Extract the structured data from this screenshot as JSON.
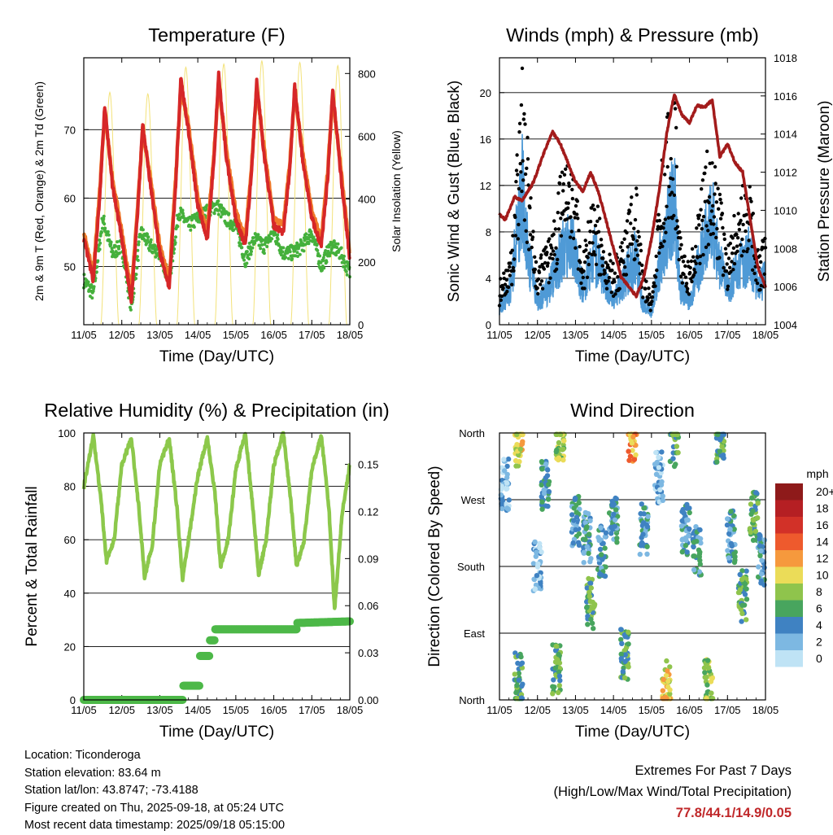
{
  "info": {
    "location": "Location: Ticonderoga",
    "elevation": "Station elevation: 83.64 m",
    "latlon": "Station lat/lon: 43.8747; -73.4188",
    "created": "Figure created on Thu, 2025-09-18, at 05:24 UTC",
    "recent": "Most recent data timestamp: 2025/09/18 05:15:00"
  },
  "extremes": {
    "title": "Extremes For Past 7 Days",
    "subtitle": "(High/Low/Max Wind/Total Precipitation)",
    "values": "77.8/44.1/14.9/0.05"
  },
  "colors": {
    "t2m": "#d62728",
    "t9m": "#f07a2a",
    "td": "#45b03c",
    "solar": "#f3e27a",
    "gust": "#000000",
    "wind": "#4f9ad6",
    "pressure": "#a31b1b",
    "rh": "#8cc84b",
    "rain": "#4db848"
  },
  "chart_data": [
    {
      "type": "line",
      "title": "Temperature (F)",
      "xlabel": "Time (Day/UTC)",
      "ylabel": "2m & 9m T (Red, Orange) & 2m Td (Green)",
      "y2label": "Solar Insolation (Yellow)",
      "xticks": [
        "11/05",
        "12/05",
        "13/05",
        "14/05",
        "15/05",
        "16/05",
        "17/05",
        "18/05"
      ],
      "yticks": [
        50,
        60,
        70
      ],
      "y2ticks": [
        0,
        200,
        400,
        600,
        800
      ],
      "ylim": [
        41.5,
        80.5
      ],
      "y2lim": [
        0,
        850
      ],
      "grid": true,
      "series": [
        {
          "name": "2m T",
          "x": [
            0.0,
            0.25,
            0.42,
            0.55,
            0.75,
            1.0,
            1.25,
            1.42,
            1.55,
            1.75,
            2.0,
            2.25,
            2.42,
            2.55,
            2.75,
            3.0,
            3.25,
            3.42,
            3.55,
            3.75,
            4.0,
            4.25,
            4.42,
            4.55,
            4.75,
            5.0,
            5.25,
            5.42,
            5.55,
            5.75,
            6.0,
            6.25,
            6.42,
            6.55,
            6.75,
            7.0
          ],
          "values": [
            54,
            48,
            60,
            73.5,
            62,
            54,
            45,
            58,
            71,
            62,
            52,
            47,
            62,
            77.5,
            70,
            59,
            54,
            65,
            78,
            66,
            57,
            53,
            64,
            77,
            66,
            56,
            55,
            64,
            76.5,
            66,
            57,
            53,
            63,
            76,
            64,
            51
          ]
        },
        {
          "name": "9m T",
          "x": [
            0.0,
            0.25,
            0.42,
            0.55,
            0.75,
            1.0,
            1.25,
            1.42,
            1.55,
            1.75,
            2.0,
            2.25,
            2.42,
            2.55,
            2.75,
            3.0,
            3.25,
            3.42,
            3.55,
            3.75,
            4.0,
            4.25,
            4.42,
            4.55,
            4.75,
            5.0,
            5.25,
            5.42,
            5.55,
            5.75,
            6.0,
            6.25,
            6.42,
            6.55,
            6.75,
            7.0
          ],
          "values": [
            55,
            49,
            61,
            72.5,
            63,
            55,
            46,
            59,
            70,
            63,
            53,
            48,
            63,
            76,
            71,
            60,
            55,
            66,
            77,
            67,
            58,
            54,
            65,
            76,
            67,
            57,
            56,
            65,
            75.5,
            67,
            58,
            54,
            64,
            75,
            65,
            52
          ]
        },
        {
          "name": "2m Td",
          "x": [
            0.0,
            0.25,
            0.5,
            0.75,
            1.0,
            1.25,
            1.5,
            1.75,
            2.0,
            2.25,
            2.5,
            2.75,
            3.0,
            3.25,
            3.5,
            3.75,
            4.0,
            4.25,
            4.5,
            4.75,
            5.0,
            5.25,
            5.5,
            5.75,
            6.0,
            6.25,
            6.5,
            6.75,
            7.0
          ],
          "values": [
            48,
            46,
            57,
            52,
            53,
            44,
            55,
            53,
            52,
            48,
            58,
            56,
            57,
            58,
            59,
            57,
            56,
            51,
            54,
            53,
            55,
            52,
            52,
            53,
            55,
            50,
            53,
            52,
            49
          ]
        },
        {
          "name": "Solar Insolation",
          "axis": "y2",
          "peaks": [
            740,
            735,
            820,
            830,
            840,
            835,
            825
          ]
        }
      ]
    },
    {
      "type": "line",
      "title": "Winds (mph) & Pressure (mb)",
      "xlabel": "Time (Day/UTC)",
      "ylabel": "Sonic Wind & Gust (Blue, Black)",
      "y2label": "Station Pressure (Maroon)",
      "xticks": [
        "11/05",
        "12/05",
        "13/05",
        "14/05",
        "15/05",
        "16/05",
        "17/05",
        "18/05"
      ],
      "yticks": [
        0,
        4,
        8,
        12,
        16,
        20
      ],
      "y2ticks": [
        1004,
        1006,
        1008,
        1010,
        1012,
        1014,
        1016,
        1018
      ],
      "ylim": [
        0,
        23
      ],
      "y2lim": [
        1004,
        1018
      ],
      "grid": true,
      "series": [
        {
          "name": "Gust",
          "x": [
            0.0,
            0.3,
            0.6,
            0.75,
            1.0,
            1.3,
            1.6,
            1.9,
            2.2,
            2.5,
            2.75,
            3.0,
            3.3,
            3.6,
            3.75,
            4.0,
            4.3,
            4.6,
            4.75,
            5.0,
            5.3,
            5.6,
            5.75,
            6.0,
            6.3,
            6.6,
            6.8,
            7.0
          ],
          "values": [
            3,
            5,
            17,
            12,
            4,
            6,
            10,
            12,
            5,
            9,
            6,
            4,
            7,
            10,
            4,
            2,
            12,
            17,
            6,
            4,
            9,
            14,
            10,
            5,
            9,
            10,
            5,
            6
          ]
        },
        {
          "name": "Wind",
          "x": [
            0.0,
            0.3,
            0.6,
            0.75,
            1.0,
            1.3,
            1.6,
            1.9,
            2.2,
            2.5,
            2.75,
            3.0,
            3.3,
            3.6,
            3.75,
            4.0,
            4.3,
            4.6,
            4.75,
            5.0,
            5.3,
            5.6,
            5.75,
            6.0,
            6.3,
            6.6,
            6.8,
            7.0
          ],
          "values": [
            1.5,
            3,
            12,
            6,
            2,
            3,
            6,
            7,
            3,
            6,
            4,
            2,
            4,
            6,
            2,
            1,
            7,
            11,
            3,
            2,
            6,
            9,
            6,
            3,
            5,
            6,
            3,
            4
          ]
        },
        {
          "name": "Station Pressure",
          "axis": "y2",
          "x": [
            0.0,
            0.15,
            0.4,
            0.6,
            0.9,
            1.2,
            1.4,
            1.6,
            1.8,
            2.0,
            2.2,
            2.4,
            2.6,
            2.8,
            3.0,
            3.2,
            3.4,
            3.6,
            3.8,
            4.0,
            4.2,
            4.4,
            4.6,
            4.8,
            5.0,
            5.2,
            5.4,
            5.6,
            5.8,
            6.0,
            6.2,
            6.4,
            6.6,
            6.8,
            7.0
          ],
          "values": [
            1009.8,
            1009.5,
            1010.7,
            1010.5,
            1011.5,
            1013.2,
            1014.1,
            1013.5,
            1012.5,
            1011.5,
            1011.0,
            1012.0,
            1011.0,
            1009.5,
            1008.0,
            1006.5,
            1006.0,
            1005.5,
            1006.5,
            1008.5,
            1011.0,
            1014.0,
            1016.1,
            1015.0,
            1014.6,
            1015.5,
            1015.4,
            1015.8,
            1012.8,
            1013.5,
            1012.5,
            1012.0,
            1009.5,
            1007.0,
            1006.0
          ]
        }
      ]
    },
    {
      "type": "line",
      "title": "Relative Humidity (%) & Precipitation (in)",
      "xlabel": "Time (Day/UTC)",
      "ylabel": "Percent & Total Rainfall",
      "xticks": [
        "11/05",
        "12/05",
        "13/05",
        "14/05",
        "15/05",
        "16/05",
        "17/05",
        "18/05"
      ],
      "yticks": [
        0,
        20,
        40,
        60,
        80,
        100
      ],
      "y2ticks": [
        "0.00",
        "0.03",
        "0.06",
        "0.09",
        "0.12",
        "0.15"
      ],
      "ylim": [
        0,
        100
      ],
      "y2lim": [
        0,
        0.17
      ],
      "grid": true,
      "series": [
        {
          "name": "Relative Humidity",
          "x": [
            0.0,
            0.25,
            0.45,
            0.6,
            0.8,
            1.0,
            1.25,
            1.45,
            1.6,
            1.8,
            2.0,
            2.25,
            2.45,
            2.6,
            2.8,
            3.0,
            3.25,
            3.45,
            3.6,
            3.8,
            4.0,
            4.25,
            4.45,
            4.6,
            4.8,
            5.0,
            5.25,
            5.45,
            5.6,
            5.8,
            6.0,
            6.25,
            6.45,
            6.6,
            6.8,
            7.0
          ],
          "values": [
            80,
            99,
            75,
            52,
            60,
            88,
            98,
            72,
            46,
            58,
            88,
            98,
            72,
            45,
            64,
            84,
            98,
            78,
            50,
            60,
            86,
            100,
            72,
            47,
            60,
            88,
            100,
            74,
            50,
            60,
            86,
            99,
            72,
            34,
            70,
            88
          ]
        },
        {
          "name": "Total Rainfall",
          "axis": "y2",
          "x": [
            0.0,
            2.6,
            2.6,
            3.05,
            3.05,
            3.3,
            3.3,
            3.45,
            3.45,
            5.6,
            5.6,
            7.0
          ],
          "values": [
            0.0,
            0.0,
            0.009,
            0.009,
            0.028,
            0.028,
            0.038,
            0.038,
            0.045,
            0.045,
            0.049,
            0.05
          ]
        }
      ]
    },
    {
      "type": "scatter",
      "title": "Wind Direction",
      "xlabel": "Time (Day/UTC)",
      "ylabel": "Direction (Colored By Speed)",
      "xticks": [
        "11/05",
        "12/05",
        "13/05",
        "14/05",
        "15/05",
        "16/05",
        "17/05",
        "18/05"
      ],
      "yticks": [
        "North",
        "East",
        "South",
        "West",
        "North"
      ],
      "ylim": [
        0,
        360
      ],
      "grid": true,
      "legend": {
        "title": "mph",
        "placement": "right",
        "labels": [
          "20+",
          "18",
          "16",
          "14",
          "12",
          "10",
          "8",
          "6",
          "4",
          "2",
          "0"
        ],
        "colors": [
          "#8e1a1a",
          "#b51f23",
          "#d23128",
          "#ee5a2d",
          "#f6993d",
          "#ebdc58",
          "#8fc44c",
          "#48a55e",
          "#3f82c2",
          "#7db8e2",
          "#bfe3f5"
        ]
      },
      "clusters": [
        {
          "x": 0.15,
          "dir": 290,
          "speed": 2
        },
        {
          "x": 0.5,
          "dir": 30,
          "speed": 6
        },
        {
          "x": 0.5,
          "dir": 350,
          "speed": 10
        },
        {
          "x": 1.0,
          "dir": 180,
          "speed": 2
        },
        {
          "x": 1.2,
          "dir": 290,
          "speed": 4
        },
        {
          "x": 1.5,
          "dir": 40,
          "speed": 6
        },
        {
          "x": 1.6,
          "dir": 355,
          "speed": 8
        },
        {
          "x": 2.0,
          "dir": 240,
          "speed": 4
        },
        {
          "x": 2.3,
          "dir": 220,
          "speed": 4
        },
        {
          "x": 2.4,
          "dir": 130,
          "speed": 6
        },
        {
          "x": 2.7,
          "dir": 200,
          "speed": 4
        },
        {
          "x": 3.0,
          "dir": 240,
          "speed": 4
        },
        {
          "x": 3.3,
          "dir": 60,
          "speed": 6
        },
        {
          "x": 3.5,
          "dir": 355,
          "speed": 12
        },
        {
          "x": 3.8,
          "dir": 230,
          "speed": 4
        },
        {
          "x": 4.2,
          "dir": 300,
          "speed": 2
        },
        {
          "x": 4.4,
          "dir": 20,
          "speed": 10
        },
        {
          "x": 4.6,
          "dir": 350,
          "speed": 6
        },
        {
          "x": 4.9,
          "dir": 230,
          "speed": 4
        },
        {
          "x": 5.2,
          "dir": 200,
          "speed": 4
        },
        {
          "x": 5.5,
          "dir": 20,
          "speed": 8
        },
        {
          "x": 5.8,
          "dir": 355,
          "speed": 6
        },
        {
          "x": 6.1,
          "dir": 220,
          "speed": 4
        },
        {
          "x": 6.4,
          "dir": 140,
          "speed": 6
        },
        {
          "x": 6.7,
          "dir": 250,
          "speed": 6
        },
        {
          "x": 6.9,
          "dir": 190,
          "speed": 4
        }
      ]
    }
  ]
}
